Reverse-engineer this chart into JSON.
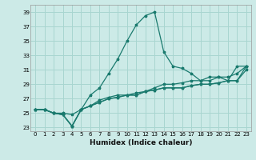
{
  "xlabel": "Humidex (Indice chaleur)",
  "bg_color": "#cceae7",
  "grid_color": "#a8d5d0",
  "line_color": "#1a7a6e",
  "xlim": [
    -0.5,
    23.5
  ],
  "ylim": [
    22.5,
    40.0
  ],
  "xticks": [
    0,
    1,
    2,
    3,
    4,
    5,
    6,
    7,
    8,
    9,
    10,
    11,
    12,
    13,
    14,
    15,
    16,
    17,
    18,
    19,
    20,
    21,
    22,
    23
  ],
  "yticks": [
    23,
    25,
    27,
    29,
    31,
    33,
    35,
    37,
    39
  ],
  "series": [
    [
      25.5,
      25.5,
      25.0,
      25.0,
      24.8,
      25.5,
      27.5,
      28.5,
      30.5,
      32.5,
      35.0,
      37.2,
      38.5,
      39.0,
      33.5,
      31.5,
      31.2,
      30.5,
      29.5,
      29.5,
      30.0,
      29.5,
      31.5,
      31.5
    ],
    [
      25.5,
      25.5,
      25.0,
      24.8,
      23.2,
      25.5,
      26.0,
      26.8,
      27.2,
      27.5,
      27.5,
      27.8,
      28.0,
      28.5,
      29.0,
      29.0,
      29.2,
      29.5,
      29.5,
      30.0,
      30.0,
      30.0,
      30.5,
      31.5
    ],
    [
      25.5,
      25.5,
      25.0,
      24.8,
      23.2,
      25.5,
      26.0,
      26.5,
      27.0,
      27.2,
      27.5,
      27.5,
      28.0,
      28.2,
      28.5,
      28.5,
      28.5,
      28.8,
      29.0,
      29.0,
      29.2,
      29.5,
      29.5,
      31.0
    ],
    [
      25.5,
      25.5,
      25.0,
      24.8,
      23.2,
      25.5,
      26.0,
      26.5,
      27.0,
      27.2,
      27.5,
      27.5,
      28.0,
      28.2,
      28.5,
      28.5,
      28.5,
      28.8,
      29.0,
      29.0,
      29.2,
      29.5,
      29.5,
      31.5
    ]
  ],
  "xlabel_fontsize": 6.5,
  "tick_fontsize": 5.0,
  "linewidth": 0.9,
  "markersize": 2.5
}
